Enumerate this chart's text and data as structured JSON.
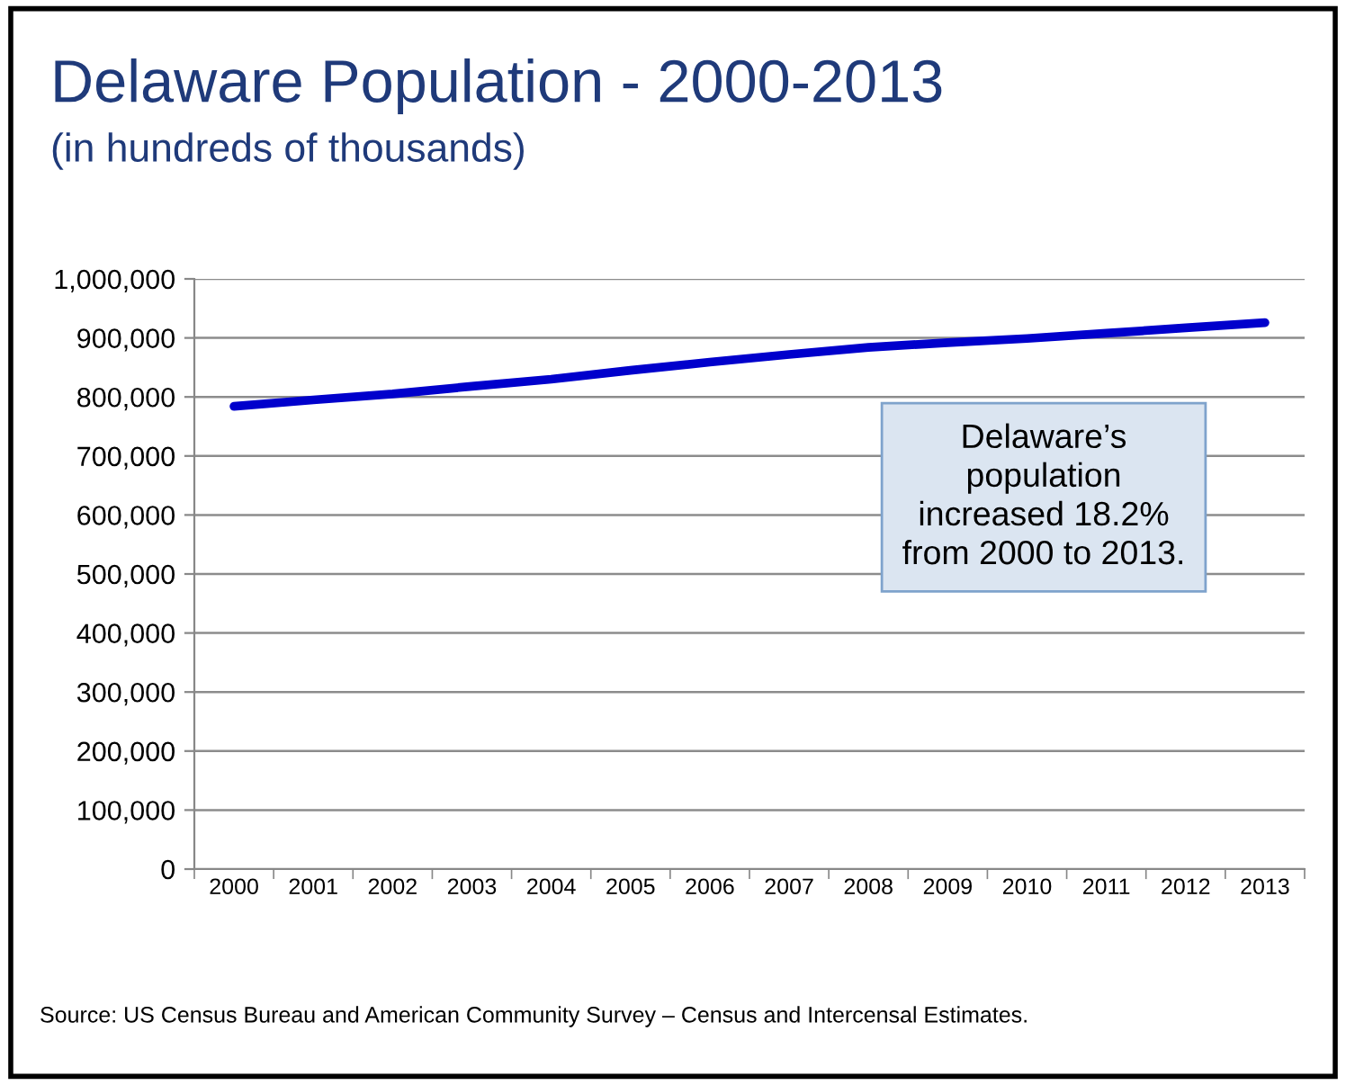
{
  "chart_data": {
    "type": "line",
    "title": "Delaware Population - 2000-2013",
    "subtitle": "(in hundreds of thousands)",
    "categories": [
      "2000",
      "2001",
      "2002",
      "2003",
      "2004",
      "2005",
      "2006",
      "2007",
      "2008",
      "2009",
      "2010",
      "2011",
      "2012",
      "2013"
    ],
    "series": [
      {
        "color": "#0000cc",
        "values": [
          784000,
          795000,
          805000,
          818000,
          830000,
          845000,
          859000,
          872000,
          884000,
          892000,
          899000,
          908000,
          917000,
          926000
        ]
      }
    ],
    "ylim": [
      0,
      1000000
    ],
    "yticks": [
      {
        "value": 0,
        "label": "0"
      },
      {
        "value": 100000,
        "label": "100,000"
      },
      {
        "value": 200000,
        "label": "200,000"
      },
      {
        "value": 300000,
        "label": "300,000"
      },
      {
        "value": 400000,
        "label": "400,000"
      },
      {
        "value": 500000,
        "label": "500,000"
      },
      {
        "value": 600000,
        "label": "600,000"
      },
      {
        "value": 700000,
        "label": "700,000"
      },
      {
        "value": 800000,
        "label": "800,000"
      },
      {
        "value": 900000,
        "label": "900,000"
      },
      {
        "value": 1000000,
        "label": "1,000,000"
      }
    ],
    "grid": "y",
    "marker": "none",
    "line_style": "solid",
    "annotations": [
      "Delaware’s\npopulation\nincreased 18.2%\nfrom 2000 to 2013.",
      "Source: US Census Bureau and American Community Survey – Census and Intercensal Estimates."
    ]
  }
}
